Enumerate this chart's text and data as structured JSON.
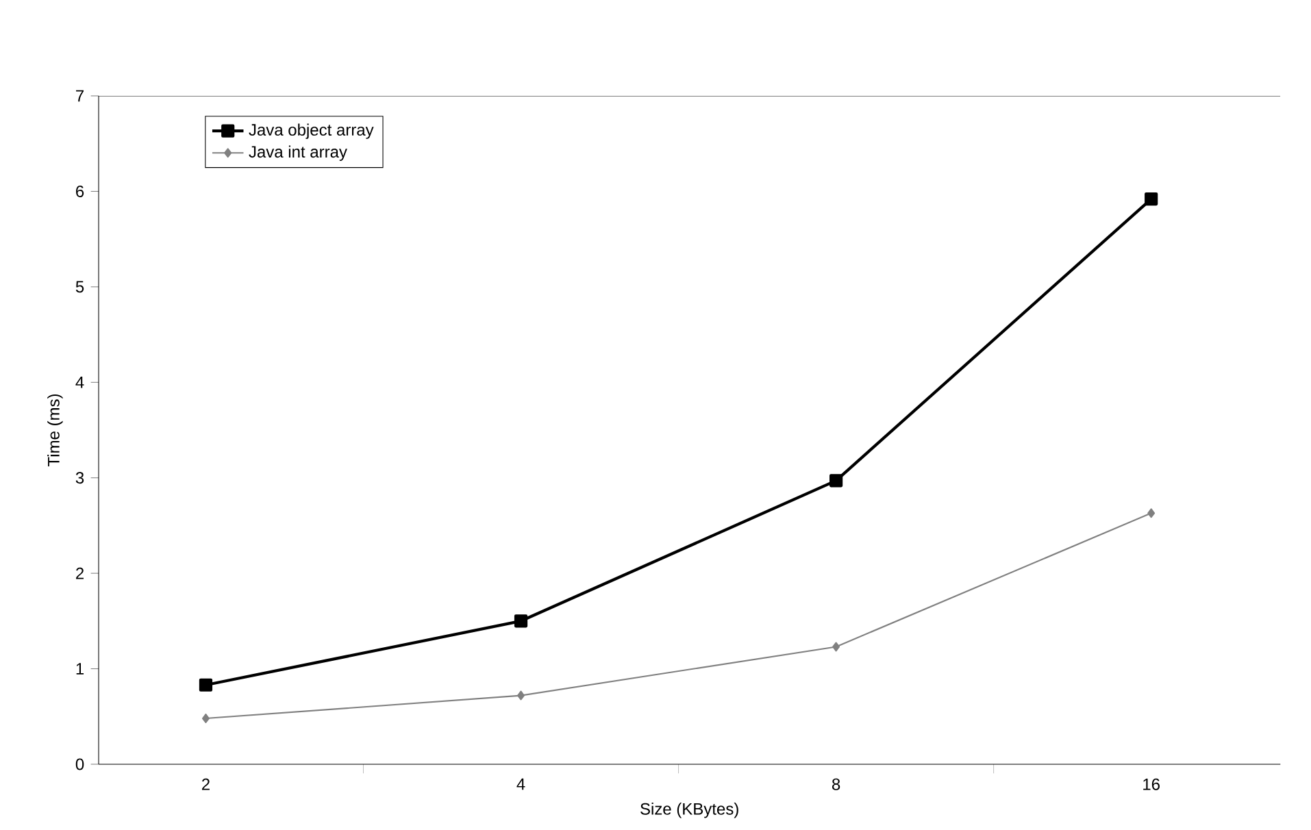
{
  "chart_data": {
    "type": "line",
    "xlabel": "Size (KBytes)",
    "ylabel": "Time (ms)",
    "categories": [
      "2",
      "4",
      "8",
      "16"
    ],
    "series": [
      {
        "name": "Java object array",
        "color": "#000000",
        "marker": "square",
        "values": [
          0.83,
          1.5,
          2.97,
          5.92
        ]
      },
      {
        "name": "Java int array",
        "color": "#808080",
        "marker": "diamond",
        "values": [
          0.48,
          0.72,
          1.23,
          2.63
        ]
      }
    ],
    "ylim": [
      0,
      7
    ],
    "yticks": [
      0,
      1,
      2,
      3,
      4,
      5,
      6,
      7
    ],
    "grid": false,
    "legend": "top left",
    "line_style": "solid"
  }
}
